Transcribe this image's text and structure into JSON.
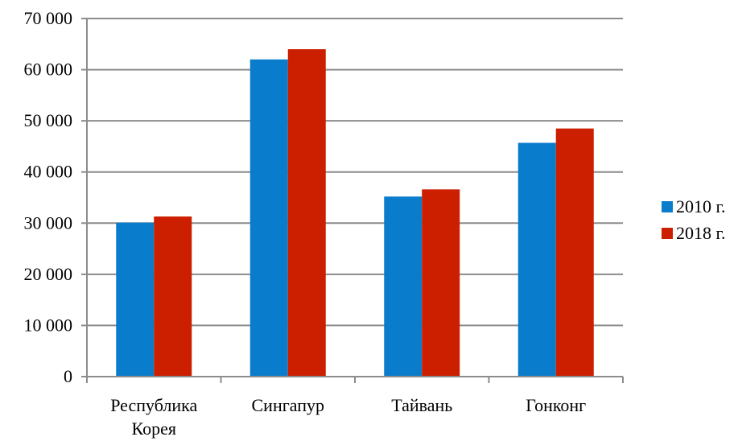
{
  "chart_data": {
    "type": "bar",
    "categories": [
      [
        "Республика",
        "Корея"
      ],
      [
        "Сингапур"
      ],
      [
        "Тайвань"
      ],
      [
        "Гонконг"
      ]
    ],
    "series": [
      {
        "name": "2010 г.",
        "color": "#0a7ccc",
        "values": [
          30100,
          62000,
          35200,
          45700
        ]
      },
      {
        "name": "2018 г.",
        "color": "#cc1f00",
        "values": [
          31300,
          64000,
          36600,
          48500
        ]
      }
    ],
    "ylim": [
      0,
      70000
    ],
    "yticks": [
      0,
      10000,
      20000,
      30000,
      40000,
      50000,
      60000,
      70000
    ],
    "ytick_labels": [
      "0",
      "10 000",
      "20 000",
      "30 000",
      "40 000",
      "50 000",
      "60 000",
      "70 000"
    ],
    "grid": true,
    "legend_position": "right",
    "title": "",
    "xlabel": "",
    "ylabel": ""
  }
}
